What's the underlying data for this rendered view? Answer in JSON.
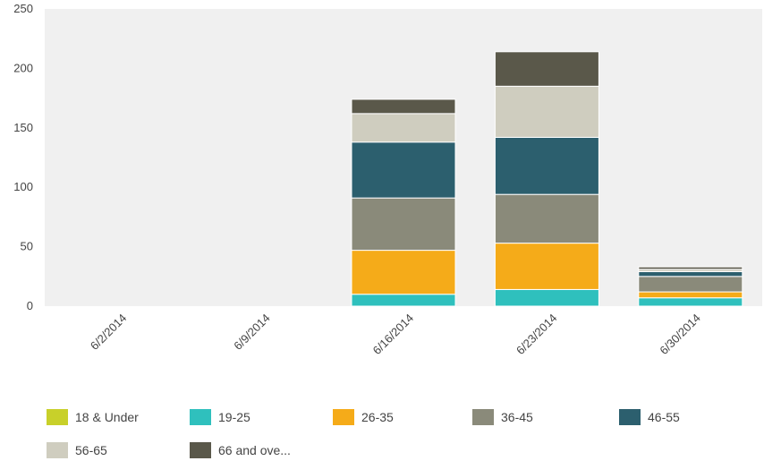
{
  "chart_data": {
    "type": "bar",
    "stacked": true,
    "categories": [
      "6/2/2014",
      "6/9/2014",
      "6/16/2014",
      "6/23/2014",
      "6/30/2014"
    ],
    "series": [
      {
        "name": "18 & Under",
        "color": "#c8d02a",
        "values": [
          0,
          0,
          0,
          0,
          0
        ]
      },
      {
        "name": "19-25",
        "color": "#2fc0bd",
        "values": [
          0,
          0,
          10,
          14,
          7
        ]
      },
      {
        "name": "26-35",
        "color": "#f5ab19",
        "values": [
          0,
          0,
          37,
          39,
          5
        ]
      },
      {
        "name": "36-45",
        "color": "#8a8a7a",
        "values": [
          0,
          0,
          44,
          41,
          13
        ]
      },
      {
        "name": "46-55",
        "color": "#2c5f6e",
        "values": [
          0,
          0,
          47,
          48,
          4
        ]
      },
      {
        "name": "56-65",
        "color": "#cfcdbf",
        "values": [
          0,
          0,
          24,
          43,
          2
        ]
      },
      {
        "name": "66 and ove...",
        "color": "#5a584a",
        "values": [
          0,
          0,
          12,
          29,
          2
        ]
      }
    ],
    "yticks": [
      0,
      50,
      100,
      150,
      200,
      250
    ],
    "ylim": [
      0,
      250
    ],
    "grid": false,
    "legend_position": "bottom"
  }
}
